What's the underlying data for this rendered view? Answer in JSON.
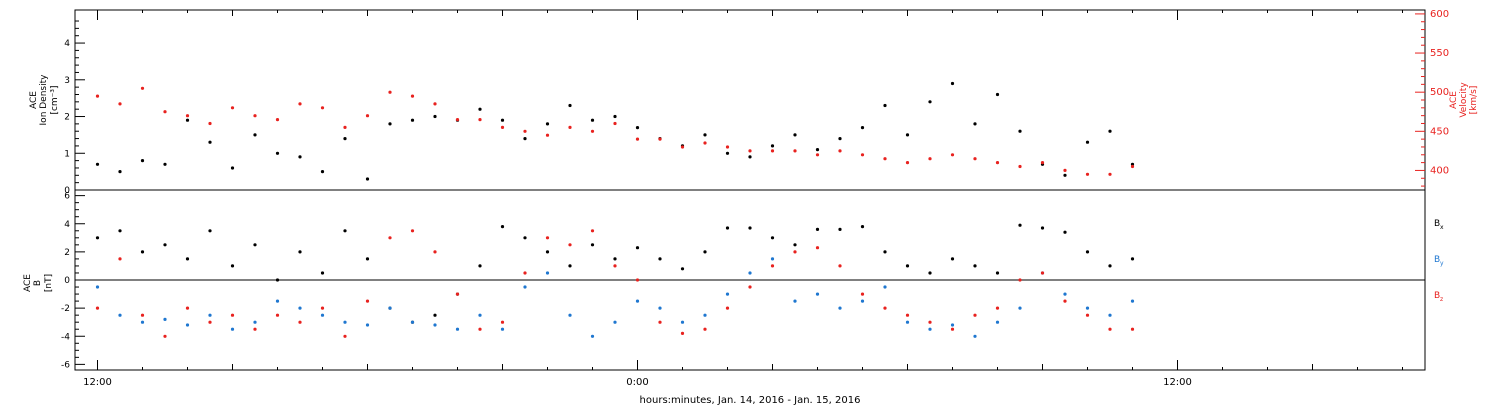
{
  "chart_data": [
    {
      "type": "scatter",
      "panel": "top",
      "x_range_hours": [
        -12.5,
        17.5
      ],
      "left_axis": {
        "label_lines": [
          "ACE",
          "Ion Density"
        ],
        "unit": "[cm⁻³]",
        "ylim": [
          0,
          4.9
        ],
        "ticks": [
          "0",
          "1",
          "2",
          "3",
          "4"
        ],
        "color": "#000000"
      },
      "right_axis": {
        "label_lines": [
          "ACE",
          "Velocity"
        ],
        "unit": "[km/s]",
        "ylim": [
          375,
          605
        ],
        "ticks": [
          "400",
          "450",
          "500",
          "550",
          "600"
        ],
        "color": "#e8221f"
      },
      "series": [
        {
          "axis": "left",
          "color": "#000000",
          "x": [
            -12.0,
            -11.5,
            -11.0,
            -10.5,
            -10.0,
            -9.5,
            -9.0,
            -8.5,
            -8.0,
            -7.5,
            -7.0,
            -6.5,
            -6.0,
            -5.5,
            -5.0,
            -4.5,
            -4.0,
            -3.5,
            -3.0,
            -2.5,
            -2.0,
            -1.5,
            -1.0,
            -0.5,
            0.0,
            0.5,
            1.0,
            1.5,
            2.0,
            2.5,
            3.0,
            3.5,
            4.0,
            4.5,
            5.0,
            5.5,
            6.0,
            6.5,
            7.0,
            7.5,
            8.0,
            8.5,
            9.0,
            9.5,
            10.0,
            10.5,
            11.0
          ],
          "y": [
            0.7,
            0.5,
            0.8,
            0.7,
            1.9,
            1.3,
            0.6,
            1.5,
            1.0,
            0.9,
            0.5,
            1.4,
            0.3,
            1.8,
            1.9,
            2.0,
            1.9,
            2.2,
            1.9,
            1.4,
            1.8,
            2.3,
            1.9,
            2.0,
            1.7,
            1.4,
            1.2,
            1.5,
            1.0,
            0.9,
            1.2,
            1.5,
            1.1,
            1.4,
            1.7,
            2.3,
            1.5,
            2.4,
            2.9,
            1.8,
            2.6,
            1.6,
            0.7,
            0.4,
            1.3,
            1.6,
            0.7
          ]
        },
        {
          "axis": "right",
          "color": "#e8221f",
          "x": [
            -12.0,
            -11.5,
            -11.0,
            -10.5,
            -10.0,
            -9.5,
            -9.0,
            -8.5,
            -8.0,
            -7.5,
            -7.0,
            -6.5,
            -6.0,
            -5.5,
            -5.0,
            -4.5,
            -4.0,
            -3.5,
            -3.0,
            -2.5,
            -2.0,
            -1.5,
            -1.0,
            -0.5,
            0.0,
            0.5,
            1.0,
            1.5,
            2.0,
            2.5,
            3.0,
            3.5,
            4.0,
            4.5,
            5.0,
            5.5,
            6.0,
            6.5,
            7.0,
            7.5,
            8.0,
            8.5,
            9.0,
            9.5,
            10.0,
            10.5,
            11.0
          ],
          "y": [
            495,
            485,
            505,
            475,
            470,
            460,
            480,
            470,
            465,
            485,
            480,
            455,
            470,
            500,
            495,
            485,
            465,
            465,
            455,
            450,
            445,
            455,
            450,
            460,
            440,
            440,
            430,
            435,
            430,
            425,
            425,
            425,
            420,
            425,
            420,
            415,
            410,
            415,
            420,
            415,
            410,
            405,
            410,
            400,
            395,
            395,
            405
          ]
        }
      ]
    },
    {
      "type": "scatter",
      "panel": "bottom",
      "x_range_hours": [
        -12.5,
        17.5
      ],
      "left_axis": {
        "label_lines": [
          "ACE",
          "B"
        ],
        "unit": "[nT]",
        "ylim": [
          -6.4,
          6.4
        ],
        "ticks": [
          "-6",
          "-4",
          "-2",
          "0",
          "2",
          "4",
          "6"
        ]
      },
      "legend": [
        {
          "text": "B",
          "sub": "x",
          "color": "#000000"
        },
        {
          "text": "B",
          "sub": "y",
          "color": "#1f77d0"
        },
        {
          "text": "B",
          "sub": "z",
          "color": "#e8221f"
        }
      ],
      "series": [
        {
          "name": "Bx",
          "color": "#000000",
          "x": [
            -12.0,
            -11.5,
            -11.0,
            -10.5,
            -10.0,
            -9.5,
            -9.0,
            -8.5,
            -8.0,
            -7.5,
            -7.0,
            -6.5,
            -6.0,
            -5.5,
            -5.0,
            -4.5,
            -4.0,
            -3.5,
            -3.0,
            -2.5,
            -2.0,
            -1.5,
            -1.0,
            -0.5,
            0.0,
            0.5,
            1.0,
            1.5,
            2.0,
            2.5,
            3.0,
            3.5,
            4.0,
            4.5,
            5.0,
            5.5,
            6.0,
            6.5,
            7.0,
            7.5,
            8.0,
            8.5,
            9.0,
            9.5,
            10.0,
            10.5,
            11.0
          ],
          "y": [
            3.0,
            3.5,
            2.0,
            2.5,
            1.5,
            3.5,
            1.0,
            2.5,
            0.0,
            2.0,
            0.5,
            3.5,
            1.5,
            -2.0,
            -3.0,
            -2.5,
            -1.0,
            1.0,
            3.8,
            3.0,
            2.0,
            1.0,
            2.5,
            1.5,
            2.3,
            1.5,
            0.8,
            2.0,
            3.7,
            3.7,
            3.0,
            2.5,
            3.6,
            3.6,
            3.8,
            2.0,
            1.0,
            0.5,
            1.5,
            1.0,
            0.5,
            3.9,
            3.7,
            3.4,
            2.0,
            1.0,
            1.5
          ]
        },
        {
          "name": "By",
          "color": "#1f77d0",
          "x": [
            -12.0,
            -11.5,
            -11.0,
            -10.5,
            -10.0,
            -9.5,
            -9.0,
            -8.5,
            -8.0,
            -7.5,
            -7.0,
            -6.5,
            -6.0,
            -5.5,
            -5.0,
            -4.5,
            -4.0,
            -3.5,
            -3.0,
            -2.5,
            -2.0,
            -1.5,
            -1.0,
            -0.5,
            0.0,
            0.5,
            1.0,
            1.5,
            2.0,
            2.5,
            3.0,
            3.5,
            4.0,
            4.5,
            5.0,
            5.5,
            6.0,
            6.5,
            7.0,
            7.5,
            8.0,
            8.5,
            9.0,
            9.5,
            10.0,
            10.5,
            11.0
          ],
          "y": [
            -0.5,
            -2.5,
            -3.0,
            -2.8,
            -3.2,
            -2.5,
            -3.5,
            -3.0,
            -1.5,
            -2.0,
            -2.5,
            -3.0,
            -3.2,
            -2.0,
            -3.0,
            -3.2,
            -3.5,
            -2.5,
            -3.5,
            -0.5,
            0.5,
            -2.5,
            -4.0,
            -3.0,
            -1.5,
            -2.0,
            -3.0,
            -2.5,
            -1.0,
            0.5,
            1.5,
            -1.5,
            -1.0,
            -2.0,
            -1.5,
            -0.5,
            -3.0,
            -3.5,
            -3.2,
            -4.0,
            -3.0,
            -2.0,
            0.5,
            -1.0,
            -2.0,
            -2.5,
            -1.5
          ]
        },
        {
          "name": "Bz",
          "color": "#e8221f",
          "x": [
            -12.0,
            -11.5,
            -11.0,
            -10.5,
            -10.0,
            -9.5,
            -9.0,
            -8.5,
            -8.0,
            -7.5,
            -7.0,
            -6.5,
            -6.0,
            -5.5,
            -5.0,
            -4.5,
            -4.0,
            -3.5,
            -3.0,
            -2.5,
            -2.0,
            -1.5,
            -1.0,
            -0.5,
            0.0,
            0.5,
            1.0,
            1.5,
            2.0,
            2.5,
            3.0,
            3.5,
            4.0,
            4.5,
            5.0,
            5.5,
            6.0,
            6.5,
            7.0,
            7.5,
            8.0,
            8.5,
            9.0,
            9.5,
            10.0,
            10.5,
            11.0
          ],
          "y": [
            -2.0,
            1.5,
            -2.5,
            -4.0,
            -2.0,
            -3.0,
            -2.5,
            -3.5,
            -2.5,
            -3.0,
            -2.0,
            -4.0,
            -1.5,
            3.0,
            3.5,
            2.0,
            -1.0,
            -3.5,
            -3.0,
            0.5,
            3.0,
            2.5,
            3.5,
            1.0,
            0.0,
            -3.0,
            -3.8,
            -3.5,
            -2.0,
            -0.5,
            1.0,
            2.0,
            2.3,
            1.0,
            -1.0,
            -2.0,
            -2.5,
            -3.0,
            -3.5,
            -2.5,
            -2.0,
            0.0,
            0.5,
            -1.5,
            -2.5,
            -3.5,
            -3.5
          ]
        }
      ]
    }
  ],
  "x_axis": {
    "range_hours": [
      -12.5,
      17.5
    ],
    "major_labels": [
      {
        "h": -12,
        "text": "12:00"
      },
      {
        "h": 0,
        "text": "0:00"
      },
      {
        "h": 12,
        "text": "12:00"
      }
    ],
    "title": "hours:minutes, Jan. 14, 2016 - Jan. 15, 2016"
  }
}
